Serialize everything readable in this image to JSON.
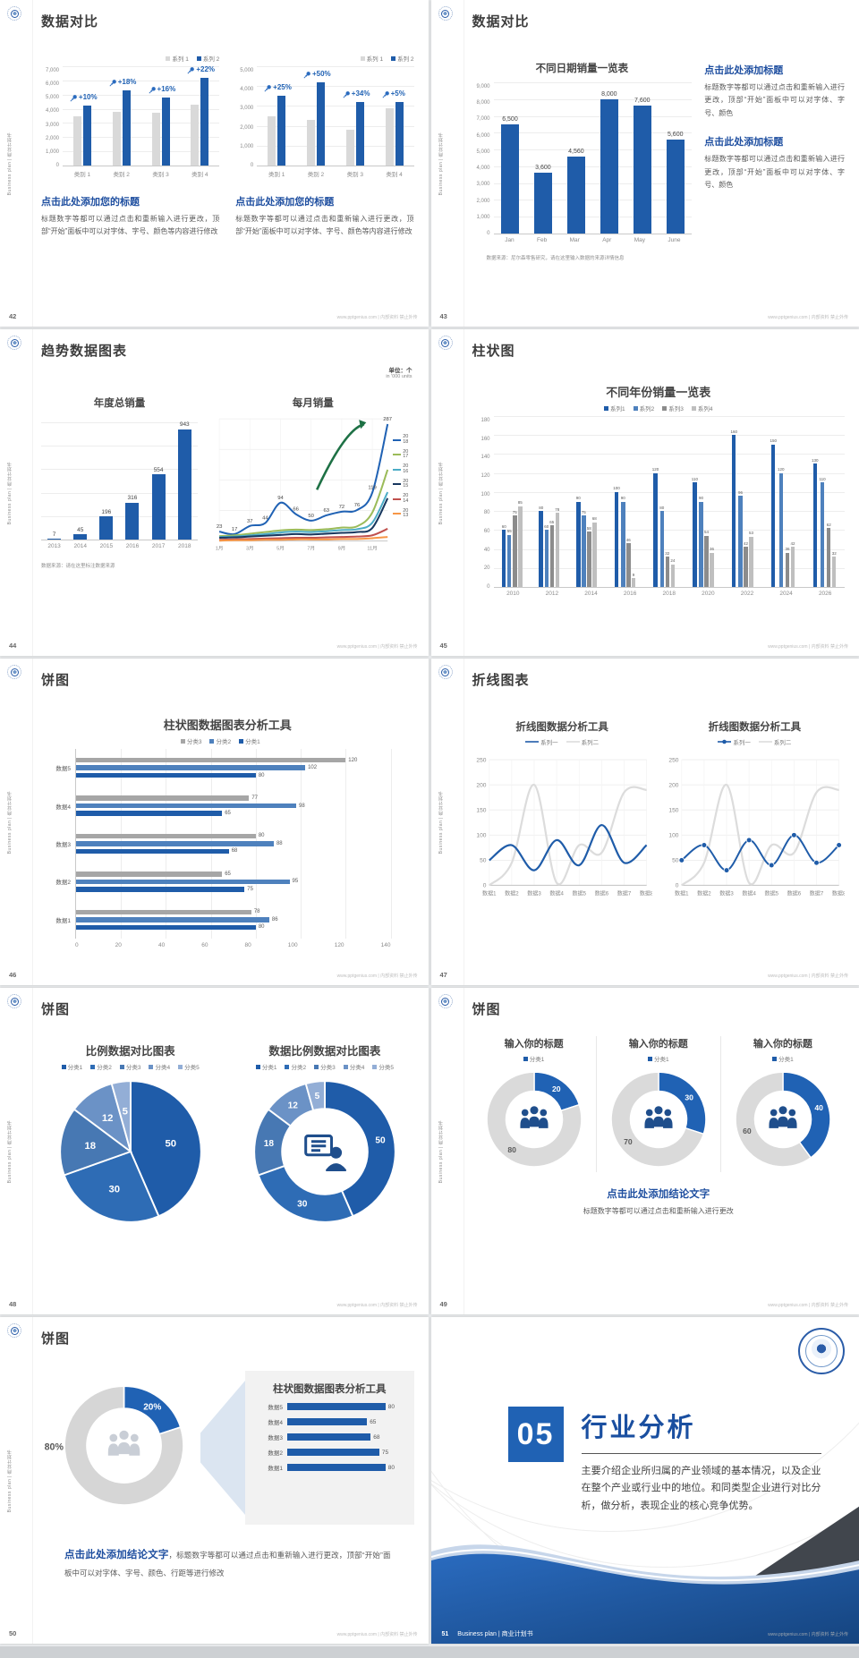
{
  "chrome": {
    "vertical_label": "Business plan | 商业计划书",
    "footer": "www.pptgenius.com | 内部资料 禁止外传"
  },
  "slides": {
    "s42": {
      "page_no": "42",
      "title": "数据对比",
      "left_chart": {
        "legend": [
          "系列 1",
          "系列 2"
        ],
        "yticks": [
          "7,000",
          "6,000",
          "5,000",
          "4,000",
          "3,000",
          "2,000",
          "1,000",
          "0"
        ],
        "ymax": 7000,
        "categories": [
          "类别 1",
          "类别 2",
          "类别 3",
          "类别 4"
        ],
        "series": [
          {
            "name": "系列 1",
            "color": "#d9d9d9",
            "values": [
              3500,
              3800,
              3700,
              4300
            ]
          },
          {
            "name": "系列 2",
            "color": "#1f5ca9",
            "values": [
              4200,
              5300,
              4800,
              6200
            ]
          }
        ],
        "annotations": [
          "+10%",
          "+18%",
          "+16%",
          "+22%"
        ]
      },
      "right_chart": {
        "legend": [
          "系列 1",
          "系列 2"
        ],
        "yticks": [
          "5,000",
          "4,000",
          "3,000",
          "2,000",
          "1,000",
          "0"
        ],
        "ymax": 5000,
        "categories": [
          "类别 1",
          "类别 2",
          "类别 3",
          "类别 4"
        ],
        "series": [
          {
            "name": "系列 1",
            "color": "#d9d9d9",
            "values": [
              2500,
              2300,
              1800,
              2900
            ]
          },
          {
            "name": "系列 2",
            "color": "#1f5ca9",
            "values": [
              3500,
              4200,
              3200,
              3200
            ]
          }
        ],
        "annotations": [
          "+25%",
          "+50%",
          "+34%",
          "+5%"
        ]
      },
      "blocks": [
        {
          "heading": "点击此处添加您的标题",
          "body": "标题数字等都可以通过点击和重新输入进行更改，顶部“开始”面板中可以对字体、字号、颜色等内容进行修改"
        },
        {
          "heading": "点击此处添加您的标题",
          "body": "标题数字等都可以通过点击和重新输入进行更改，顶部“开始”面板中可以对字体、字号、颜色等内容进行修改"
        }
      ]
    },
    "s43": {
      "page_no": "43",
      "title": "数据对比",
      "chart": {
        "title": "不同日期销量一览表",
        "yticks": [
          "9,000",
          "8,000",
          "7,000",
          "6,000",
          "5,000",
          "4,000",
          "3,000",
          "2,000",
          "1,000",
          "0"
        ],
        "ymax": 9000,
        "categories": [
          "Jan",
          "Feb",
          "Mar",
          "Apr",
          "May",
          "June"
        ],
        "series": [
          {
            "name": "销量",
            "color": "#1f5ca9",
            "values": [
              6500,
              3600,
              4560,
              8000,
              7600,
              5600
            ]
          }
        ],
        "value_labels": [
          "6,500",
          "3,600",
          "4,560",
          "8,000",
          "7,600",
          "5,600"
        ]
      },
      "caption": "数据来源：尼尔森零售研究，请在这里输入数据的来源详情信息",
      "blocks": [
        {
          "heading": "点击此处添加标题",
          "body": "标题数字等都可以通过点击和重新输入进行更改，顶部“开始”面板中可以对字体、字号、颜色"
        },
        {
          "heading": "点击此处添加标题",
          "body": "标题数字等都可以通过点击和重新输入进行更改，顶部“开始”面板中可以对字体、字号、颜色"
        }
      ]
    },
    "s44": {
      "page_no": "44",
      "title": "趋势数据图表",
      "unit_line1": "单位：个",
      "unit_line2": "in '000 units",
      "left_chart": {
        "title": "年度总销量",
        "ymax": 1000,
        "gridcount": 5,
        "categories": [
          "2013",
          "2014",
          "2015",
          "2016",
          "2017",
          "2018"
        ],
        "series": [
          {
            "name": "年度总销量",
            "color": "#1f5ca9",
            "values": [
              7,
              45,
              196,
              316,
              554,
              943
            ]
          }
        ],
        "value_labels": [
          "7",
          "45",
          "196",
          "316",
          "554",
          "943"
        ]
      },
      "right_chart": {
        "title": "每月销量",
        "ymax": 300,
        "ystep": 75,
        "x_labels": [
          "1月",
          "3月",
          "5月",
          "7月",
          "9月",
          "11月"
        ],
        "series": [
          {
            "name": "2018",
            "color": "#2062b4",
            "values": [
              23,
              17,
              37,
              44,
              94,
              66,
              50,
              63,
              72,
              76,
              119,
              287
            ],
            "labeled": true
          },
          {
            "name": "2017",
            "color": "#9bbb59",
            "values": [
              12,
              14,
              18,
              22,
              26,
              28,
              27,
              29,
              33,
              36,
              70,
              175
            ]
          },
          {
            "name": "2016",
            "color": "#4bacc6",
            "values": [
              10,
              11,
              14,
              17,
              21,
              23,
              22,
              24,
              27,
              29,
              45,
              120
            ]
          },
          {
            "name": "2015",
            "color": "#17375e",
            "values": [
              8,
              9,
              11,
              13,
              15,
              17,
              16,
              18,
              20,
              22,
              32,
              105
            ]
          },
          {
            "name": "2014",
            "color": "#c0504d",
            "values": [
              3,
              4,
              5,
              6,
              7,
              8,
              8,
              9,
              10,
              11,
              14,
              30
            ]
          },
          {
            "name": "2013",
            "color": "#f79646",
            "values": [
              1,
              2,
              2,
              3,
              3,
              4,
              4,
              4,
              5,
              5,
              7,
              10
            ]
          }
        ],
        "legend_years": [
          "20\n18",
          "20\n17",
          "20\n16",
          "20\n15",
          "20\n14",
          "20\n13"
        ],
        "arrow": true
      },
      "caption": "数据来源：请在这里标注数据来源"
    },
    "s45": {
      "page_no": "45",
      "title": "柱状图",
      "chart": {
        "title": "不同年份销量一览表",
        "legend": [
          "系列1",
          "系列2",
          "系列3",
          "系列4"
        ],
        "yticks": [
          "180",
          "160",
          "140",
          "120",
          "100",
          "80",
          "60",
          "40",
          "20",
          "0"
        ],
        "ymax": 180,
        "categories": [
          "2010",
          "2012",
          "2014",
          "2016",
          "2018",
          "2020",
          "2022",
          "2024",
          "2026"
        ],
        "series": [
          {
            "name": "系列1",
            "color": "#1f5ca9",
            "values": [
              60,
              80,
              90,
              100,
              120,
              110,
              160,
              150,
              130
            ]
          },
          {
            "name": "系列2",
            "color": "#4e81bd",
            "values": [
              55,
              60,
              75,
              90,
              80,
              90,
              96,
              120,
              110
            ]
          },
          {
            "name": "系列3",
            "color": "#8c8c8c",
            "values": [
              75,
              65,
              58,
              46,
              32,
              54,
              42,
              36,
              62
            ]
          },
          {
            "name": "系列4",
            "color": "#bfbfbf",
            "values": [
              85,
              78,
              68,
              9,
              24,
              36,
              53,
              42,
              32
            ]
          }
        ],
        "bar_labels": true
      }
    },
    "s46": {
      "page_no": "46",
      "title": "饼图",
      "chart": {
        "title": "柱状图数据图表分析工具",
        "legend": [
          "分类3",
          "分类2",
          "分类1"
        ],
        "xmax": 140,
        "x_labels": [
          "0",
          "20",
          "40",
          "60",
          "80",
          "100",
          "120",
          "140"
        ],
        "categories": [
          "数据5",
          "数据4",
          "数据3",
          "数据2",
          "数据1"
        ],
        "series": [
          {
            "name": "分类3",
            "color": "#a6a6a6",
            "values": [
              120,
              77,
              80,
              65,
              78
            ]
          },
          {
            "name": "分类2",
            "color": "#4e81bd",
            "values": [
              102,
              98,
              88,
              95,
              86
            ]
          },
          {
            "name": "分类1",
            "color": "#1f5ca9",
            "values": [
              80,
              65,
              68,
              75,
              80
            ]
          }
        ]
      }
    },
    "s47": {
      "page_no": "47",
      "title": "折线图表",
      "left_chart": {
        "title": "折线图数据分析工具",
        "legend": [
          "系列一",
          "系列二"
        ],
        "ymax": 250,
        "ystep": 50,
        "categories": [
          "数据1",
          "数据2",
          "数据3",
          "数据4",
          "数据5",
          "数据6",
          "数据7",
          "数据8"
        ],
        "series": [
          {
            "name": "系列二",
            "color": "#dcdcdc",
            "values": [
              0,
              45,
              200,
              5,
              80,
              65,
              185,
              190
            ]
          },
          {
            "name": "系列一",
            "color": "#1f5ca9",
            "values": [
              50,
              80,
              30,
              90,
              40,
              120,
              45,
              80
            ]
          }
        ]
      },
      "right_chart": {
        "title": "折线图数据分析工具",
        "legend": [
          "系列一",
          "系列二"
        ],
        "ymax": 250,
        "ystep": 50,
        "categories": [
          "数据1",
          "数据2",
          "数据3",
          "数据4",
          "数据5",
          "数据6",
          "数据7",
          "数据8"
        ],
        "series": [
          {
            "name": "系列二",
            "color": "#dcdcdc",
            "values": [
              0,
              45,
              200,
              5,
              80,
              65,
              185,
              190
            ]
          },
          {
            "name": "系列一",
            "color": "#1f5ca9",
            "values": [
              50,
              80,
              30,
              90,
              40,
              100,
              45,
              80
            ],
            "markers": true
          }
        ]
      }
    },
    "s48": {
      "page_no": "48",
      "title": "饼图",
      "left_chart": {
        "title": "比例数据对比图表",
        "legend": [
          "分类1",
          "分类2",
          "分类3",
          "分类4",
          "分类5"
        ],
        "values": [
          50,
          30,
          18,
          12,
          5
        ],
        "colors": [
          "#1f5ca9",
          "#2e6cb5",
          "#4778b3",
          "#6b92c6",
          "#93aed6"
        ]
      },
      "right_chart": {
        "title": "数据比例数据对比图表",
        "legend": [
          "分类1",
          "分类2",
          "分类3",
          "分类4",
          "分类5"
        ],
        "values": [
          50,
          30,
          18,
          12,
          5
        ],
        "colors": [
          "#1f5ca9",
          "#2e6cb5",
          "#4778b3",
          "#6b92c6",
          "#93aed6"
        ],
        "donut": true,
        "icon": "board"
      }
    },
    "s49": {
      "page_no": "49",
      "title": "饼图",
      "gauges": [
        {
          "title": "输入你的标题",
          "legend": [
            "分类1"
          ],
          "value": 20,
          "rest": 80
        },
        {
          "title": "输入你的标题",
          "legend": [
            "分类1"
          ],
          "value": 30,
          "rest": 70
        },
        {
          "title": "输入你的标题",
          "legend": [
            "分类1"
          ],
          "value": 40,
          "rest": 60
        }
      ],
      "conclusion": "点击此处添加结论文字",
      "conclusion_body": "标题数字等都可以通过点击和重新输入进行更改"
    },
    "s50": {
      "page_no": "50",
      "title": "饼图",
      "gauge": {
        "value": 20,
        "value_label": "20%",
        "rest_label": "80%"
      },
      "panel": {
        "title": "柱状图数据图表分析工具",
        "categories": [
          "数据5",
          "数据4",
          "数据3",
          "数据2",
          "数据1"
        ],
        "values": [
          80,
          65,
          68,
          75,
          80
        ],
        "xmax": 90
      },
      "conclusion": "点击此处添加结论文字",
      "conclusion_body": "，标题数字等都可以通过点击和重新输入进行更改，顶部“开始”面板中可以对字体、字号、颜色、行距等进行修改"
    },
    "s51": {
      "page_no": "51",
      "number": "05",
      "title": "行业分析",
      "body": "主要介绍企业所归属的产业领域的基本情况，以及企业在整个产业或行业中的地位。和同类型企业进行对比分析，做分析，表现企业的核心竞争优势。",
      "footer_left": "Business plan | 商业计划书"
    }
  }
}
